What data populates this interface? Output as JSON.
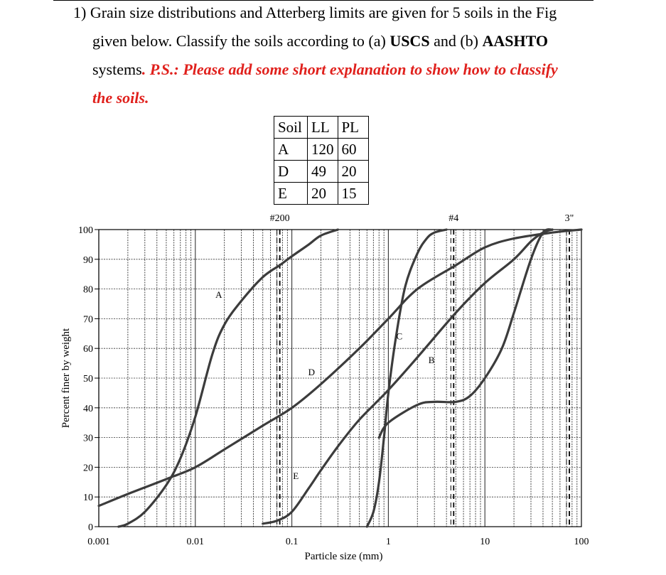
{
  "question": {
    "number": "1)",
    "line1": "Grain size distributions and Atterberg limits are given for 5 soils in the Fig",
    "line2_pre": "given below. Classify the soils according to (a) ",
    "line2_b1": "USCS",
    "line2_mid": " and (b) ",
    "line2_b2": "AASHTO",
    "line3_pre": "systems",
    "line3_red": ". P.S.: Please add some short explanation to show how to classify",
    "line4_red": "the soils."
  },
  "table": {
    "headers": [
      "Soil",
      "LL",
      "PL"
    ],
    "rows": [
      [
        "A",
        "120",
        "60"
      ],
      [
        "D",
        "49",
        "20"
      ],
      [
        "E",
        "20",
        "15"
      ]
    ]
  },
  "chart_data": {
    "type": "line",
    "xlabel": "Particle size (mm)",
    "ylabel": "Percent finer by weight",
    "xscale": "log",
    "xlim": [
      0.001,
      100
    ],
    "ylim": [
      0,
      100
    ],
    "x_ticks": [
      "0.001",
      "0.01",
      "0.1",
      "1",
      "10",
      "100"
    ],
    "y_ticks": [
      "0",
      "10",
      "20",
      "30",
      "40",
      "50",
      "60",
      "70",
      "80",
      "90",
      "100"
    ],
    "sieve_markers": [
      {
        "label": "#200",
        "x": 0.075
      },
      {
        "label": "#4",
        "x": 4.75
      },
      {
        "label": "3\"",
        "x": 75
      }
    ],
    "grid": true,
    "series": [
      {
        "name": "A",
        "label_at": [
          0.0175,
          77
        ],
        "x": [
          0.0016,
          0.002,
          0.003,
          0.005,
          0.007,
          0.01,
          0.015,
          0.02,
          0.03,
          0.05,
          0.075,
          0.1,
          0.15,
          0.2,
          0.3
        ],
        "y": [
          0,
          1,
          5,
          14,
          23,
          37,
          58,
          68,
          76,
          84,
          88,
          91,
          95,
          98,
          100
        ]
      },
      {
        "name": "B",
        "label_at": [
          2.8,
          55
        ],
        "x": [
          0.8,
          1,
          2,
          3,
          5,
          7,
          10,
          15,
          20,
          30,
          40,
          50
        ],
        "y": [
          30,
          35,
          41,
          42,
          42,
          44,
          50,
          60,
          72,
          90,
          99,
          100
        ]
      },
      {
        "name": "C",
        "label_at": [
          1.3,
          63
        ],
        "x": [
          0.6,
          0.7,
          0.8,
          0.9,
          1,
          1.2,
          1.5,
          2,
          2.5,
          3,
          4
        ],
        "y": [
          0,
          5,
          15,
          30,
          45,
          64,
          81,
          92,
          97,
          99,
          100
        ]
      },
      {
        "name": "D",
        "label_at": [
          0.16,
          51
        ],
        "x": [
          0.001,
          0.002,
          0.005,
          0.01,
          0.02,
          0.05,
          0.1,
          0.2,
          0.5,
          1,
          2,
          5,
          10,
          20,
          50,
          100
        ],
        "y": [
          7,
          11,
          16,
          20,
          26,
          34,
          40,
          48,
          60,
          70,
          80,
          88,
          94,
          97,
          99,
          100
        ]
      },
      {
        "name": "E",
        "label_at": [
          0.11,
          16
        ],
        "x": [
          0.05,
          0.07,
          0.1,
          0.15,
          0.2,
          0.3,
          0.5,
          1,
          2,
          5,
          10,
          20,
          30,
          40,
          50
        ],
        "y": [
          1,
          2,
          5,
          13,
          19,
          27,
          36,
          46,
          57,
          72,
          82,
          90,
          96,
          99,
          100
        ]
      }
    ]
  },
  "colors": {
    "curve": "#3c3c3c",
    "grid": "#333333",
    "red_text": "#e0201c"
  }
}
